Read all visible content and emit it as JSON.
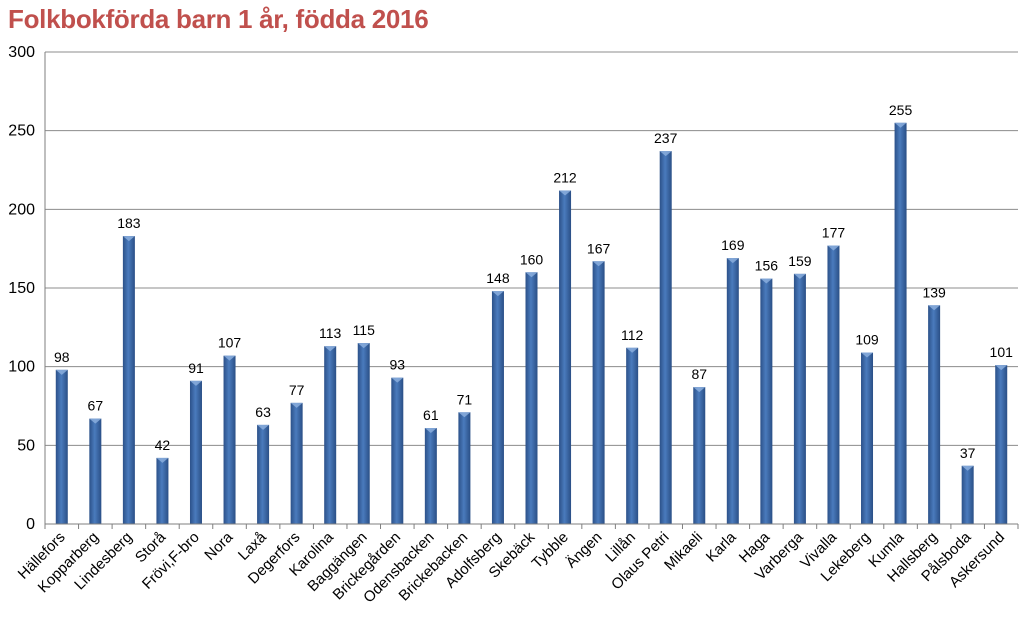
{
  "chart_data": {
    "type": "bar",
    "title": "Folkbokförda barn 1 år, födda 2016",
    "xlabel": "",
    "ylabel": "",
    "ylim": [
      0,
      300
    ],
    "yticks": [
      0,
      50,
      100,
      150,
      200,
      250,
      300
    ],
    "grid": true,
    "legend": "none",
    "bar_color": "#3d6aa8",
    "title_color": "#c0504d",
    "categories": [
      "Hällefors",
      "Kopparberg",
      "Lindesberg",
      "Storå",
      "Frövi,F-bro",
      "Nora",
      "Laxå",
      "Degerfors",
      "Karolina",
      "Baggängen",
      "Brickegården",
      "Odensbacken",
      "Brickebacken",
      "Adolfsberg",
      "Skebäck",
      "Tybble",
      "Ängen",
      "Lillån",
      "Olaus Petri",
      "Mikaeli",
      "Karla",
      "Haga",
      "Varberga",
      "Vivalla",
      "Lekeberg",
      "Kumla",
      "Hallsberg",
      "Pålsboda",
      "Askersund"
    ],
    "values": [
      98,
      67,
      183,
      42,
      91,
      107,
      63,
      77,
      113,
      115,
      93,
      61,
      71,
      148,
      160,
      212,
      167,
      112,
      237,
      87,
      169,
      156,
      159,
      177,
      109,
      255,
      139,
      37,
      101
    ]
  }
}
